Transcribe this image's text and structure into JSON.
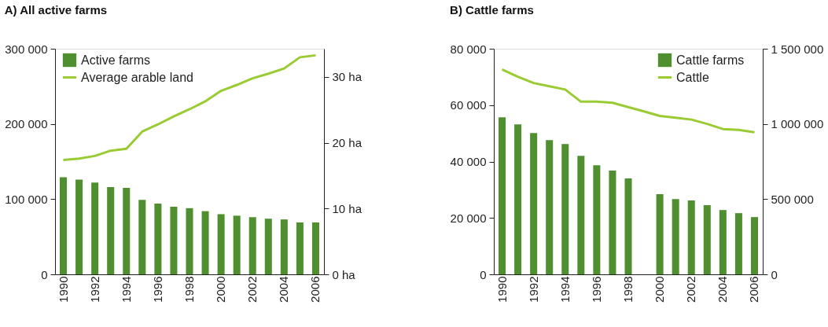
{
  "chart_data": [
    {
      "type": "bar",
      "title": "A) All active farms",
      "categories": [
        "1990",
        null,
        "1992",
        null,
        "1994",
        null,
        "1996",
        null,
        "1998",
        null,
        "2000",
        null,
        "2002",
        null,
        "2004",
        null,
        "2006"
      ],
      "series": [
        {
          "name": "Active farms",
          "color": "#4f8f2f",
          "values": [
            129000,
            126000,
            122000,
            116000,
            115000,
            99000,
            94000,
            90000,
            88000,
            84000,
            80000,
            78000,
            76000,
            74000,
            73000,
            69000,
            69000
          ]
        },
        {
          "name": "Average arable land",
          "type": "line",
          "axis": "y2",
          "color": "#99cc33",
          "values": [
            17.4,
            17.6,
            18.0,
            18.8,
            19.1,
            21.7,
            22.8,
            24.0,
            25.1,
            26.3,
            27.9,
            28.8,
            29.8,
            30.5,
            31.3,
            33.0,
            33.3
          ]
        }
      ],
      "ylim": [
        0,
        300000
      ],
      "yticks": [
        {
          "value": 0,
          "label": "0"
        },
        {
          "value": 100000,
          "label": "100 000"
        },
        {
          "value": 200000,
          "label": "200 000"
        },
        {
          "value": 300000,
          "label": "300 000"
        }
      ],
      "y2lim": [
        0,
        34.3
      ],
      "y2ticks": [
        {
          "value": 0,
          "label": "0 ha"
        },
        {
          "value": 10,
          "label": "10 ha"
        },
        {
          "value": 20,
          "label": "20 ha"
        },
        {
          "value": 30,
          "label": "30 ha"
        }
      ],
      "legend": "top left",
      "grid": false
    },
    {
      "type": "bar",
      "title": "B) Cattle farms",
      "categories": [
        "1990",
        null,
        "1992",
        null,
        "1994",
        null,
        "1996",
        null,
        "1998",
        null,
        "2000",
        null,
        "2002",
        null,
        "2004",
        null,
        "2006"
      ],
      "series": [
        {
          "name": "Cattle farms",
          "color": "#4f8f2f",
          "values": [
            55700,
            53200,
            50100,
            47600,
            46200,
            42000,
            38700,
            36800,
            34000,
            null,
            28400,
            26700,
            26200,
            24500,
            22800,
            21700,
            20300
          ]
        },
        {
          "name": "Cattle",
          "type": "line",
          "axis": "y2",
          "color": "#99cc33",
          "values": [
            1362000,
            1314000,
            1272000,
            1250000,
            1229000,
            1148000,
            1148000,
            1141000,
            1112000,
            1083000,
            1053000,
            1041000,
            1029000,
            1000000,
            966000,
            960000,
            945000
          ]
        }
      ],
      "ylim": [
        0,
        80000
      ],
      "yticks": [
        {
          "value": 0,
          "label": "0"
        },
        {
          "value": 20000,
          "label": "20 000"
        },
        {
          "value": 40000,
          "label": "40 000"
        },
        {
          "value": 60000,
          "label": "60 000"
        },
        {
          "value": 80000,
          "label": "80 000"
        }
      ],
      "y2lim": [
        0,
        1500000
      ],
      "y2ticks": [
        {
          "value": 0,
          "label": "0"
        },
        {
          "value": 500000,
          "label": "500 000"
        },
        {
          "value": 1000000,
          "label": "1 000 000"
        },
        {
          "value": 1500000,
          "label": "1 500 000"
        }
      ],
      "legend": "top right",
      "grid": false
    }
  ]
}
